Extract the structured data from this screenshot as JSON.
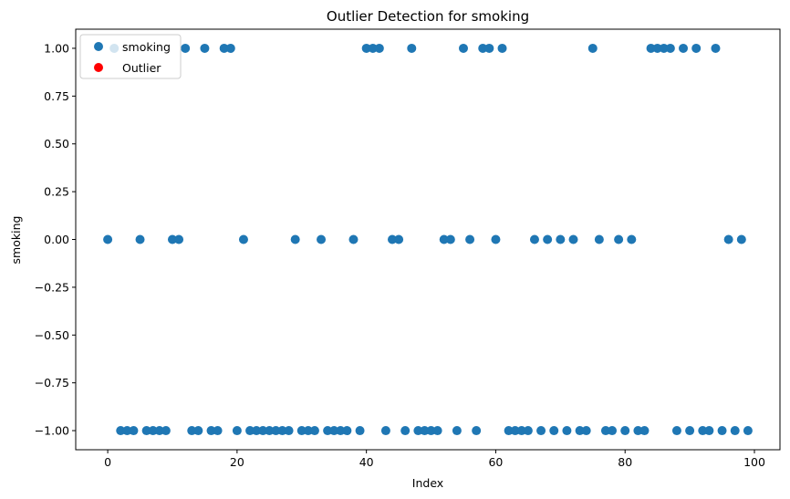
{
  "chart_data": {
    "type": "scatter",
    "title": "Outlier Detection for smoking",
    "xlabel": "Index",
    "ylabel": "smoking",
    "xlim": [
      -4.95,
      103.95
    ],
    "ylim": [
      -1.1,
      1.1
    ],
    "x_ticks": [
      0,
      20,
      40,
      60,
      80,
      100
    ],
    "y_ticks": [
      -1.0,
      -0.75,
      -0.5,
      -0.25,
      0.0,
      0.25,
      0.5,
      0.75,
      1.0
    ],
    "y_tick_labels": [
      "−1.00",
      "−0.75",
      "−0.50",
      "−0.25",
      "0.00",
      "0.25",
      "0.50",
      "0.75",
      "1.00"
    ],
    "grid": false,
    "legend": {
      "placement": "top-left",
      "entries": [
        "smoking",
        "Outlier"
      ]
    },
    "series": [
      {
        "name": "smoking",
        "color": "#1f77b4",
        "x": [
          0,
          1,
          2,
          3,
          4,
          5,
          6,
          7,
          8,
          9,
          10,
          11,
          12,
          13,
          14,
          15,
          16,
          17,
          18,
          19,
          20,
          21,
          22,
          23,
          24,
          25,
          26,
          27,
          28,
          29,
          30,
          31,
          32,
          33,
          34,
          35,
          36,
          37,
          38,
          39,
          40,
          41,
          42,
          43,
          44,
          45,
          46,
          47,
          48,
          49,
          50,
          51,
          52,
          53,
          54,
          55,
          56,
          57,
          58,
          59,
          60,
          61,
          62,
          63,
          64,
          65,
          66,
          67,
          68,
          69,
          70,
          71,
          72,
          73,
          74,
          75,
          76,
          77,
          78,
          79,
          80,
          81,
          82,
          83,
          84,
          85,
          86,
          87,
          88,
          89,
          90,
          91,
          92,
          93,
          94,
          95,
          96,
          97,
          98,
          99
        ],
        "y": [
          0,
          1,
          -1,
          -1,
          -1,
          0,
          -1,
          -1,
          -1,
          -1,
          0,
          0,
          1,
          -1,
          -1,
          1,
          -1,
          -1,
          1,
          1,
          -1,
          0,
          -1,
          -1,
          -1,
          -1,
          -1,
          -1,
          -1,
          0,
          -1,
          -1,
          -1,
          0,
          -1,
          -1,
          -1,
          -1,
          0,
          -1,
          1,
          1,
          1,
          -1,
          0,
          0,
          -1,
          1,
          -1,
          -1,
          -1,
          -1,
          0,
          0,
          -1,
          1,
          0,
          -1,
          1,
          1,
          0,
          1,
          -1,
          -1,
          -1,
          -1,
          0,
          -1,
          0,
          -1,
          0,
          -1,
          0,
          -1,
          -1,
          1,
          0,
          -1,
          -1,
          0,
          -1,
          0,
          -1,
          -1,
          1,
          1,
          1,
          1,
          -1,
          1,
          -1,
          1,
          -1,
          -1,
          1,
          -1,
          0,
          -1,
          0,
          -1
        ]
      },
      {
        "name": "Outlier",
        "color": "#ff0000",
        "x": [],
        "y": []
      }
    ]
  }
}
